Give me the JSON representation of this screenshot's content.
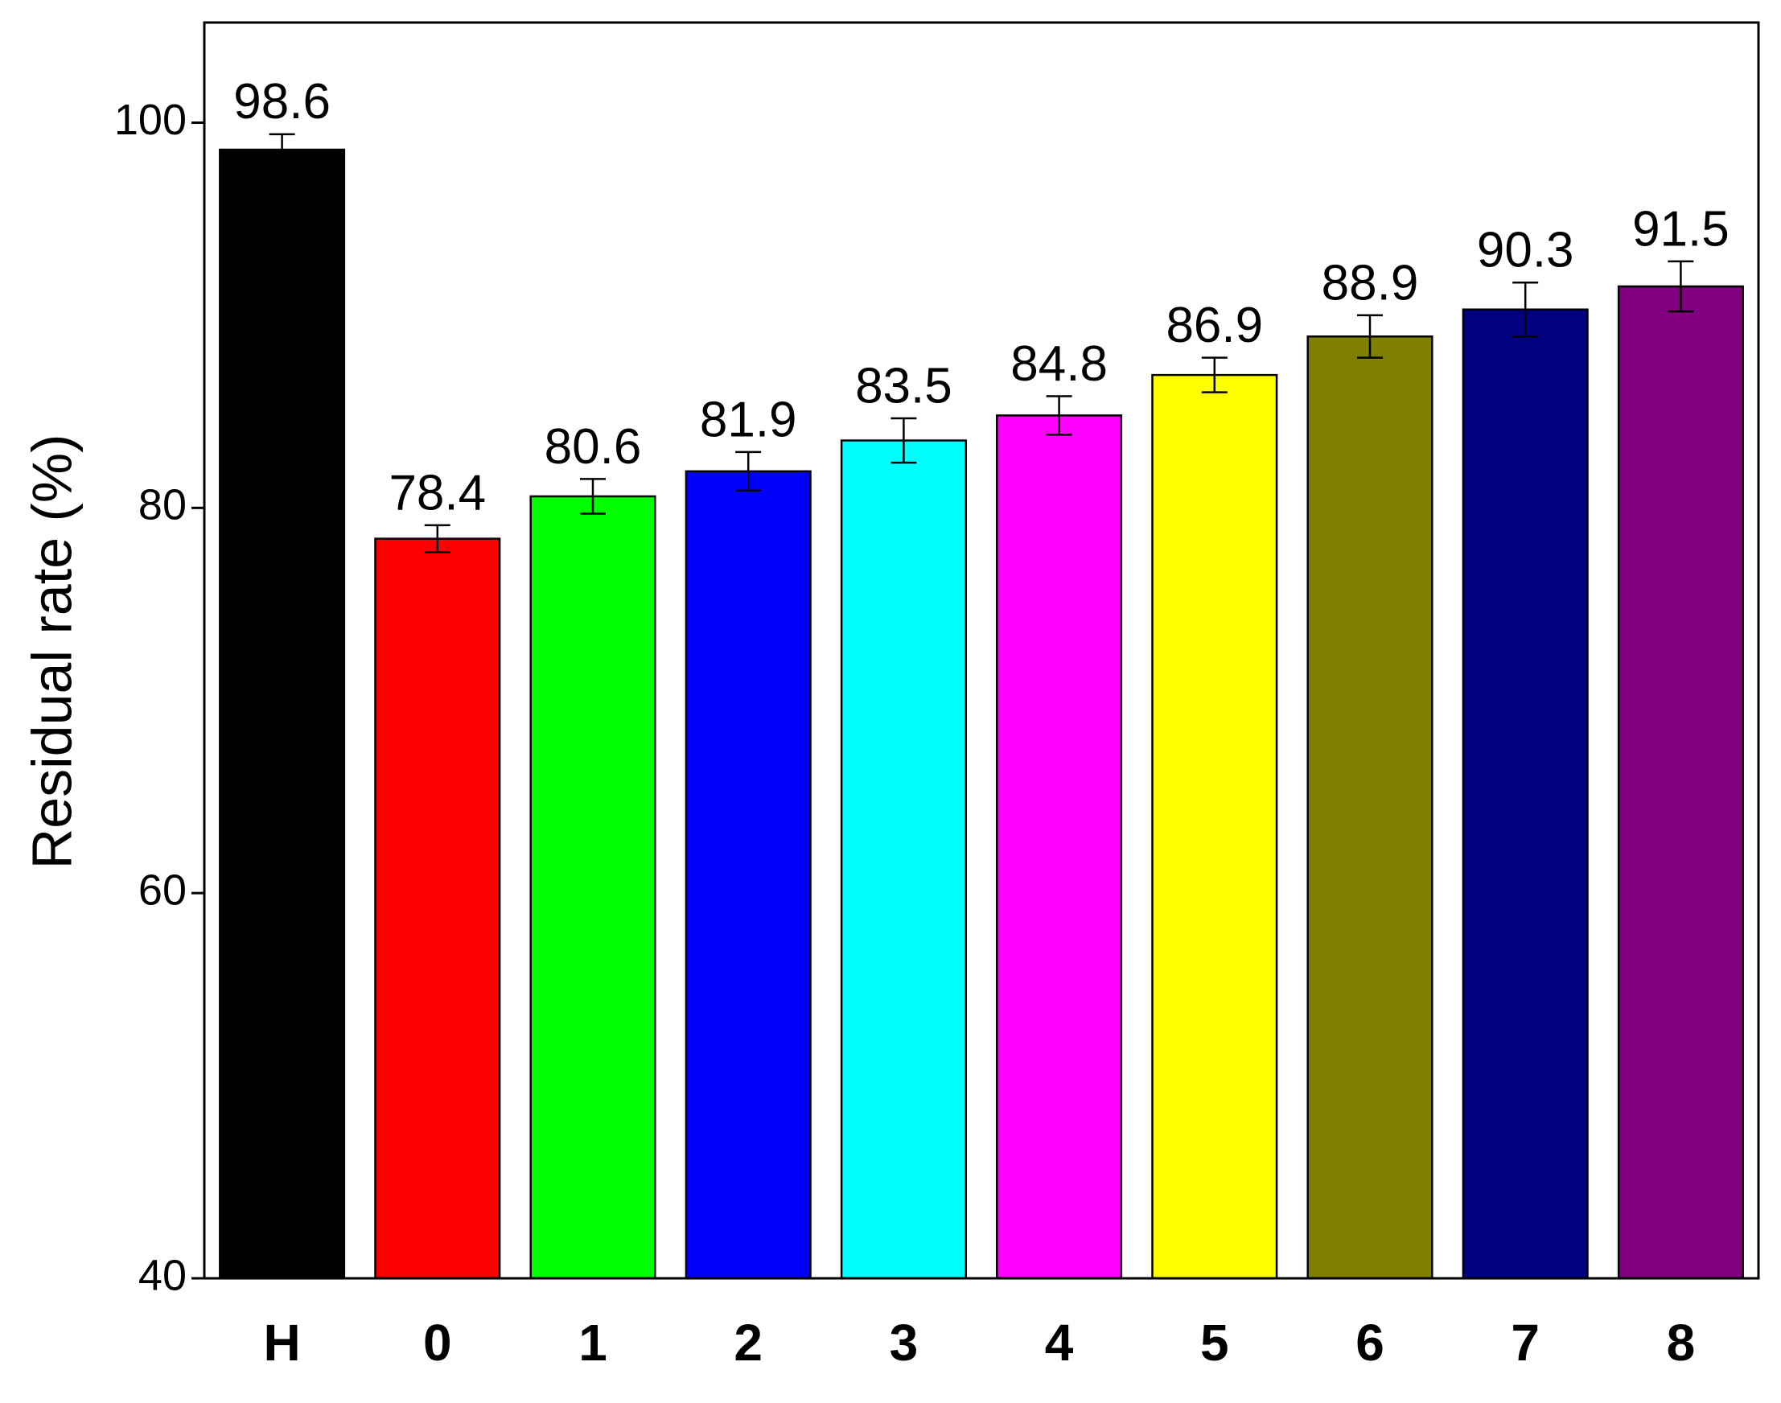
{
  "chart_data": {
    "type": "bar",
    "y_label": "Residual rate (%)",
    "categories": [
      "H",
      "0",
      "1",
      "2",
      "3",
      "4",
      "5",
      "6",
      "7",
      "8"
    ],
    "values": [
      98.6,
      78.4,
      80.6,
      81.9,
      83.5,
      84.8,
      86.9,
      88.9,
      90.3,
      91.5
    ],
    "errors": [
      0.8,
      0.7,
      0.9,
      1.0,
      1.15,
      1.0,
      0.9,
      1.1,
      1.4,
      1.3
    ],
    "colors": [
      "#000000",
      "#ff0000",
      "#00ff00",
      "#0000ff",
      "#00ffff",
      "#ff00ff",
      "#ffff00",
      "#808000",
      "#000080",
      "#800080"
    ],
    "ylim": [
      40,
      105.2
    ],
    "yticks": [
      40,
      60,
      80,
      100
    ],
    "grid": false
  }
}
